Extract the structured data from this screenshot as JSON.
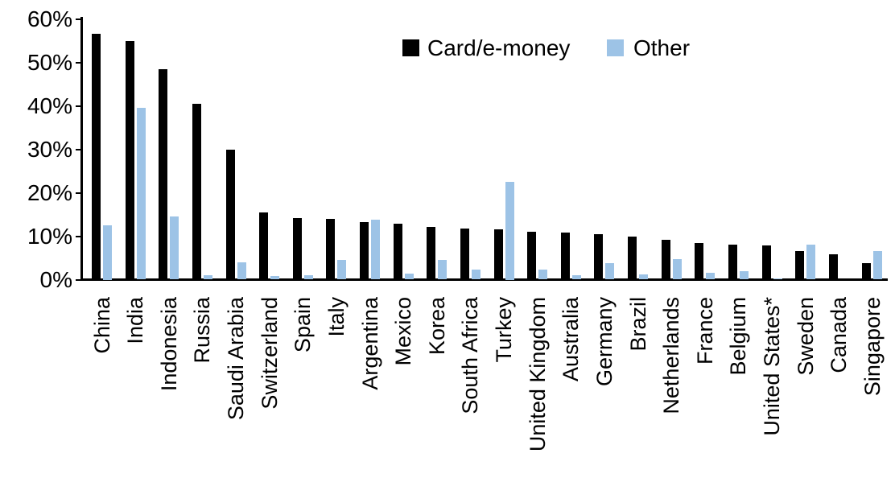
{
  "chart_data": {
    "type": "bar",
    "title": "",
    "categories": [
      "China",
      "India",
      "Indonesia",
      "Russia",
      "Saudi Arabia",
      "Switzerland",
      "Spain",
      "Italy",
      "Argentina",
      "Mexico",
      "Korea",
      "South Africa",
      "Turkey",
      "United Kingdom",
      "Australia",
      "Germany",
      "Brazil",
      "Netherlands",
      "France",
      "Belgium",
      "United States*",
      "Sweden",
      "Canada",
      "Singapore"
    ],
    "series": [
      {
        "name": "Card/e-money",
        "color": "#000000",
        "values": [
          56.5,
          55,
          48.5,
          40.5,
          30,
          15.5,
          14.2,
          14,
          13.3,
          12.9,
          12.2,
          11.7,
          11.5,
          11,
          10.8,
          10.5,
          10,
          9.2,
          8.5,
          8,
          7.8,
          6.5,
          5.8,
          3.8
        ]
      },
      {
        "name": "Other",
        "color": "#9DC3E6",
        "values": [
          12.5,
          39.5,
          14.5,
          1,
          4,
          0.8,
          1,
          4.5,
          13.8,
          1.3,
          4.5,
          2.3,
          22.5,
          2.3,
          1.1,
          3.8,
          1.2,
          4.8,
          1.5,
          2,
          0.3,
          8,
          0,
          6.5
        ]
      }
    ],
    "xlabel": "",
    "ylabel": "",
    "ylim": [
      0,
      60
    ],
    "ytick_step": 10,
    "ytick_labels": [
      "0%",
      "10%",
      "20%",
      "30%",
      "40%",
      "50%",
      "60%"
    ],
    "grid": false,
    "legend_position": "top-center"
  }
}
